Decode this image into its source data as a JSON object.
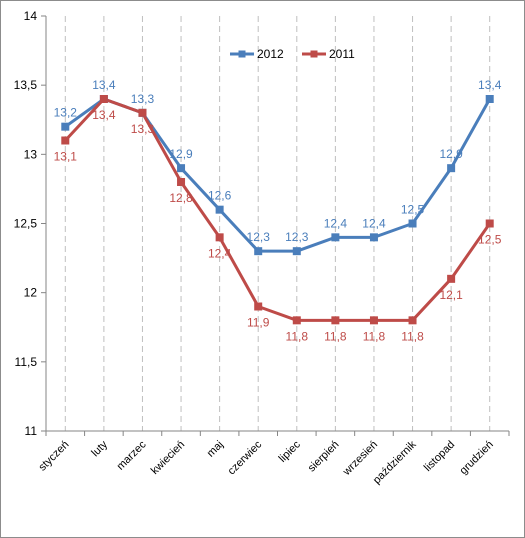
{
  "chart_data": {
    "type": "line",
    "categories": [
      "styczeń",
      "luty",
      "marzec",
      "kwiecień",
      "maj",
      "czerwiec",
      "lipiec",
      "sierpień",
      "wrzesień",
      "październik",
      "listopad",
      "grudzień"
    ],
    "series": [
      {
        "name": "2012",
        "color": "#4a7ebb",
        "values": [
          13.2,
          13.4,
          13.3,
          12.9,
          12.6,
          12.3,
          12.3,
          12.4,
          12.4,
          12.5,
          12.9,
          13.4
        ],
        "labels": [
          "13,2",
          "13,4",
          "13,3",
          "12,9",
          "12,6",
          "12,3",
          "12,3",
          "12,4",
          "12,4",
          "12,5",
          "12,9",
          "13,4"
        ]
      },
      {
        "name": "2011",
        "color": "#be4b48",
        "values": [
          13.1,
          13.4,
          13.3,
          12.8,
          12.4,
          11.9,
          11.8,
          11.8,
          11.8,
          11.8,
          12.1,
          12.5
        ],
        "labels": [
          "13,1",
          "13,4",
          "13,3",
          "12,8",
          "12,4",
          "11,9",
          "11,8",
          "11,8",
          "11,8",
          "11,8",
          "12,1",
          "12,5"
        ]
      }
    ],
    "yticks": [
      11,
      11.5,
      12,
      12.5,
      13,
      13.5,
      14
    ],
    "ytick_labels": [
      "11",
      "11,5",
      "12",
      "12,5",
      "13",
      "13,5",
      "14"
    ],
    "ylim": [
      11,
      14
    ],
    "title": "",
    "xlabel": "",
    "ylabel": "",
    "legend": "top-right",
    "grid": "vertical-dashed"
  }
}
